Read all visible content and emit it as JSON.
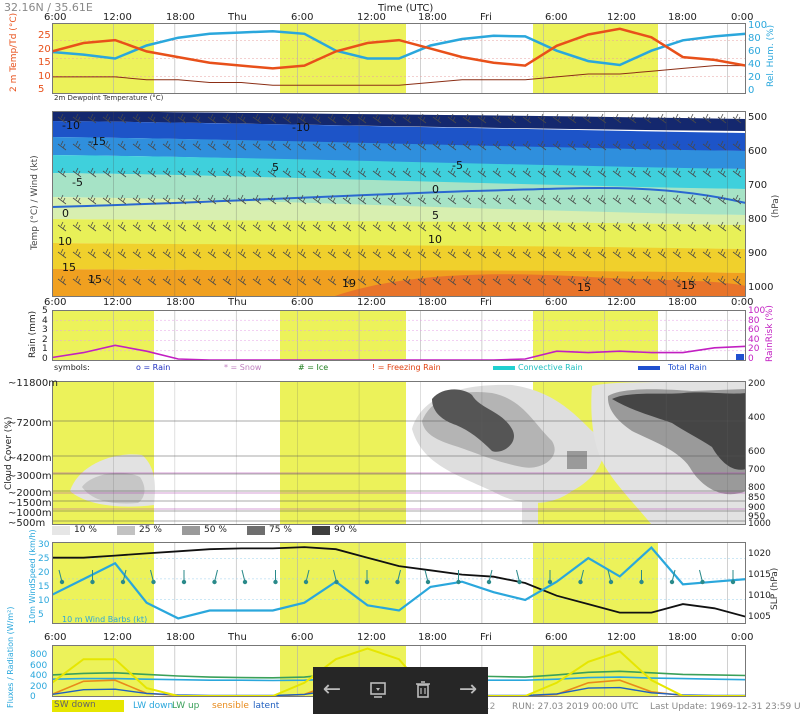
{
  "header": {
    "coords": "32.16N / 35.61E",
    "time_axis_title": "Time (UTC)",
    "time_ticks": [
      "6:00",
      "12:00",
      "18:00",
      "Thu",
      "6:00",
      "12:00",
      "18:00",
      "Fri",
      "6:00",
      "12:00",
      "18:00",
      "0:00"
    ]
  },
  "colors": {
    "temp": "#e8501a",
    "humidity": "#2aa7dc",
    "dewpoint": "#8b2e15",
    "daylight": "#ecf25a",
    "rain": "#c21fc2",
    "wind": "#2aa7dc",
    "slp": "#111111",
    "sw_down": "#e6e600",
    "lw_down": "#2aa7dc",
    "lw_up": "#3aa05a",
    "sensible": "#e88a1a",
    "latent": "#2060c0",
    "rain_symbol": "#2030c0",
    "snow_symbol": "#c080c0",
    "ice_symbol": "#208020",
    "freezing_symbol": "#e04010",
    "convective": "#20d0d0",
    "total_rain": "#2050d0"
  },
  "panel_temp": {
    "ylabel": "2 m Temp/Td (°C)",
    "ylabel2": "Rel. Hum. (%)",
    "yticks": [
      "25",
      "20",
      "15",
      "10",
      "5"
    ],
    "yticks2": [
      "100",
      "80",
      "60",
      "40",
      "20",
      "0"
    ],
    "caption": "2m Dewpoint Temperature (°C)"
  },
  "panel_profile": {
    "ylabel": "Temp (°C) / Wind (kt)",
    "ylabel2": "(hPa)",
    "pressure_ticks": [
      "500",
      "600",
      "700",
      "800",
      "900",
      "1000"
    ],
    "isotherm_labels": [
      "-10",
      "-15",
      "-10",
      "-5",
      "-5",
      "5",
      "0",
      "0",
      "5",
      "10",
      "10",
      "15",
      "15",
      "19",
      "15",
      "-15"
    ]
  },
  "panel_rain": {
    "ylabel": "Rain (mm)",
    "ylabel2": "RainRisk (%)",
    "yticks": [
      "5",
      "4",
      "3",
      "2",
      "1",
      "0"
    ],
    "yticks2": [
      "100",
      "80",
      "60",
      "40",
      "20",
      "0"
    ],
    "legend": {
      "symbols": "symbols:",
      "rain": "o = Rain",
      "snow": "* = Snow",
      "ice": "# = Ice",
      "freezing": "! = Freezing Rain",
      "convective": "Convective Rain",
      "total": "Total Rain"
    }
  },
  "panel_cloud": {
    "ylabel": "Cloud Cover (%)",
    "left_ticks": [
      "~11800m",
      "~7200m",
      "~4200m",
      "~3000m",
      "~2000m",
      "~1500m",
      "~1000m",
      "~500m"
    ],
    "right_ticks": [
      "200",
      "400",
      "600",
      "700",
      "800",
      "850",
      "900",
      "950",
      "1000"
    ],
    "legend": [
      "10 %",
      "25 %",
      "50 %",
      "75 %",
      "90 %"
    ],
    "legend_colors": [
      "#e6e6e6",
      "#c2c2c2",
      "#9a9a9a",
      "#6e6e6e",
      "#3e3e3e"
    ]
  },
  "panel_wind": {
    "ylabel": "10m WindSpeed (km/h)",
    "ylabel2": "SLP (hPa)",
    "yticks": [
      "30",
      "25",
      "20",
      "15",
      "10",
      "5"
    ],
    "yticks2": [
      "1020",
      "1015",
      "1010",
      "1005"
    ],
    "caption": "10 m Wind Barbs (kt)"
  },
  "panel_flux": {
    "ylabel": "Fluxes / Radiation (W/m²)",
    "yticks": [
      "800",
      "600",
      "400",
      "200",
      "0"
    ],
    "legend": {
      "sw_down": "SW down",
      "lw_down": "LW down",
      "lw_up": "LW up",
      "sensible": "sensible",
      "latent": "latent"
    }
  },
  "footer": {
    "model": "NEMS12",
    "run": "RUN: 27.03 2019 00:00 UTC",
    "last_update": "Last Update: 1969-12-31 23:59 UTC"
  },
  "toolbar_icons": [
    "back-arrow-icon",
    "slideshow-icon",
    "trash-icon",
    "forward-arrow-icon"
  ],
  "chart_data": [
    {
      "type": "line",
      "title": "2 m Temp/Td",
      "x": [
        "6:00",
        "9:00",
        "12:00",
        "15:00",
        "18:00",
        "21:00",
        "Thu",
        "3:00",
        "6:00",
        "9:00",
        "12:00",
        "15:00",
        "18:00",
        "21:00",
        "Fri",
        "3:00",
        "6:00",
        "9:00",
        "12:00",
        "15:00",
        "18:00",
        "21:00",
        "0:00"
      ],
      "ylim_left": [
        5,
        28
      ],
      "ylim_right": [
        0,
        100
      ],
      "series": [
        {
          "name": "2 m Temp",
          "axis": "left",
          "values": [
            19,
            22,
            23,
            19,
            17,
            15,
            14,
            13,
            14,
            19,
            22,
            23,
            20,
            17,
            15,
            14,
            21,
            25,
            27,
            24,
            17,
            16,
            14
          ]
        },
        {
          "name": "2m Dewpoint Temperature",
          "axis": "left",
          "values": [
            10,
            10,
            10,
            9,
            9,
            8,
            8,
            7,
            7,
            7,
            7,
            7,
            8,
            9,
            9,
            9,
            10,
            11,
            11,
            12,
            13,
            14,
            14
          ]
        },
        {
          "name": "Rel. Hum.",
          "axis": "right",
          "values": [
            60,
            56,
            50,
            70,
            82,
            88,
            90,
            92,
            88,
            62,
            50,
            50,
            70,
            80,
            85,
            84,
            62,
            46,
            40,
            62,
            78,
            84,
            88
          ]
        }
      ]
    },
    {
      "type": "line",
      "title": "Precipitation",
      "x": [
        "6:00",
        "9:00",
        "12:00",
        "15:00",
        "18:00",
        "21:00",
        "Thu",
        "3:00",
        "6:00",
        "9:00",
        "12:00",
        "15:00",
        "18:00",
        "21:00",
        "Fri",
        "3:00",
        "6:00",
        "9:00",
        "12:00",
        "15:00",
        "18:00",
        "21:00",
        "0:00"
      ],
      "ylim_left": [
        0,
        5
      ],
      "ylim_right": [
        0,
        100
      ],
      "series": [
        {
          "name": "RainRisk",
          "axis": "right",
          "values": [
            5,
            15,
            30,
            18,
            2,
            0,
            0,
            0,
            0,
            0,
            0,
            0,
            0,
            0,
            0,
            2,
            18,
            15,
            18,
            15,
            15,
            25,
            28
          ]
        },
        {
          "name": "Total Rain",
          "axis": "left",
          "values": [
            0,
            0,
            0,
            0,
            0,
            0,
            0,
            0,
            0,
            0,
            0,
            0,
            0,
            0,
            0,
            0,
            0,
            0,
            0,
            0,
            0,
            0,
            0.4
          ]
        }
      ]
    },
    {
      "type": "line",
      "title": "Wind and pressure",
      "x": [
        "6:00",
        "9:00",
        "12:00",
        "15:00",
        "18:00",
        "21:00",
        "Thu",
        "3:00",
        "6:00",
        "9:00",
        "12:00",
        "15:00",
        "18:00",
        "21:00",
        "Fri",
        "3:00",
        "6:00",
        "9:00",
        "12:00",
        "15:00",
        "18:00",
        "21:00",
        "0:00"
      ],
      "ylim_left": [
        2,
        31
      ],
      "ylim_right": [
        1004,
        1022
      ],
      "series": [
        {
          "name": "10m WindSpeed",
          "axis": "left",
          "values": [
            12,
            18,
            24,
            9,
            3,
            6,
            6,
            6,
            9,
            17,
            8,
            6,
            15,
            17,
            13,
            10,
            17,
            26,
            19,
            30,
            16,
            17,
            18
          ]
        },
        {
          "name": "SLP",
          "axis": "right",
          "values": [
            1019,
            1019,
            1019.5,
            1020,
            1020.5,
            1021,
            1021.2,
            1021.2,
            1021.5,
            1021,
            1019,
            1017,
            1016,
            1015,
            1014.5,
            1013,
            1010,
            1008,
            1006,
            1006,
            1008,
            1007,
            1005
          ]
        }
      ]
    },
    {
      "type": "line",
      "title": "Fluxes / Radiation",
      "x": [
        "6:00",
        "9:00",
        "12:00",
        "15:00",
        "18:00",
        "21:00",
        "Thu",
        "3:00",
        "6:00",
        "9:00",
        "12:00",
        "15:00",
        "18:00",
        "21:00",
        "Fri",
        "3:00",
        "6:00",
        "9:00",
        "12:00",
        "15:00",
        "18:00",
        "21:00",
        "0:00"
      ],
      "ylim": [
        0,
        950
      ],
      "series": [
        {
          "name": "SW down",
          "values": [
            250,
            700,
            700,
            150,
            0,
            0,
            0,
            0,
            250,
            700,
            900,
            700,
            0,
            0,
            0,
            0,
            250,
            650,
            850,
            300,
            0,
            0,
            0
          ]
        },
        {
          "name": "LW down",
          "values": [
            320,
            330,
            330,
            320,
            310,
            300,
            300,
            295,
            300,
            320,
            330,
            320,
            310,
            300,
            300,
            300,
            320,
            350,
            360,
            340,
            330,
            320,
            310
          ]
        },
        {
          "name": "LW up",
          "values": [
            400,
            430,
            440,
            410,
            380,
            360,
            350,
            345,
            360,
            420,
            460,
            440,
            400,
            380,
            370,
            360,
            400,
            450,
            470,
            440,
            410,
            400,
            390
          ]
        },
        {
          "name": "sensible",
          "values": [
            30,
            280,
            300,
            50,
            10,
            0,
            0,
            0,
            30,
            250,
            300,
            200,
            10,
            0,
            0,
            0,
            30,
            250,
            300,
            80,
            10,
            0,
            0
          ]
        },
        {
          "name": "latent",
          "values": [
            30,
            120,
            130,
            50,
            20,
            10,
            10,
            10,
            30,
            120,
            140,
            100,
            20,
            10,
            10,
            10,
            40,
            150,
            160,
            60,
            20,
            10,
            10
          ]
        }
      ]
    }
  ]
}
